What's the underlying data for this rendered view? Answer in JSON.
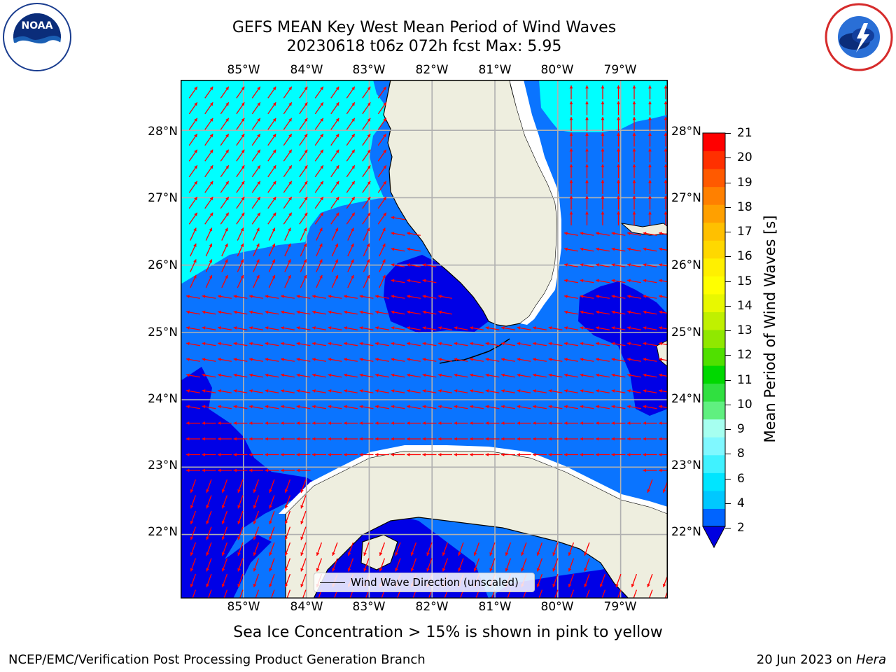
{
  "title": {
    "line1": "GEFS MEAN Key West Mean Period of Wind Waves",
    "line2": "20230618 t06z 072h fcst   Max: 5.95"
  },
  "logos": {
    "left": "noaa-logo",
    "right": "national-weather-service-logo"
  },
  "axes": {
    "lon_labels": [
      "85°W",
      "84°W",
      "83°W",
      "82°W",
      "81°W",
      "80°W",
      "79°W"
    ],
    "lat_labels": [
      "28°N",
      "27°N",
      "26°N",
      "25°N",
      "24°N",
      "23°N",
      "22°N"
    ],
    "lon_range": [
      -86.0,
      -78.25
    ],
    "lat_range": [
      21.05,
      28.75
    ],
    "grid": true
  },
  "legend": {
    "label": "Wind Wave Direction (unscaled)"
  },
  "colorbar": {
    "label": "Mean Period of Wind Waves [s]",
    "ticks": [
      "21",
      "20",
      "19",
      "18",
      "17",
      "16",
      "15",
      "14",
      "13",
      "12",
      "11",
      "10",
      "9",
      "8",
      "6",
      "4",
      "2"
    ],
    "colors": [
      "#0064ff",
      "#00c8ff",
      "#00e5ff",
      "#40f2ff",
      "#80f8ff",
      "#a6fff0",
      "#60f080",
      "#30e040",
      "#00d800",
      "#50e000",
      "#90e800",
      "#c0f000",
      "#e8f800",
      "#ffff00",
      "#fff000",
      "#ffd800",
      "#ffc000",
      "#ffa000",
      "#ff8000",
      "#ff5a00",
      "#ff3000",
      "#ff0000"
    ],
    "extend": "min",
    "extend_color": "#0000e0"
  },
  "chart_data": {
    "type": "heatmap",
    "variable": "Mean Period of Wind Waves [s]",
    "max": 5.95,
    "levels": [
      2,
      4,
      6
    ],
    "level_colors": {
      "below_2": "#0000e6",
      "2_to_4": "#0a74ff",
      "4_to_6": "#00ffff"
    },
    "arrow_color": "#ff0000",
    "land_color": "#eeeedf"
  },
  "footer": {
    "note": "Sea Ice Concentration > 15% is shown in pink to yellow",
    "credit": "NCEP/EMC/Verification Post Processing Product Generation Branch",
    "date": "20 Jun 2023 on ",
    "machine": "Hera"
  }
}
